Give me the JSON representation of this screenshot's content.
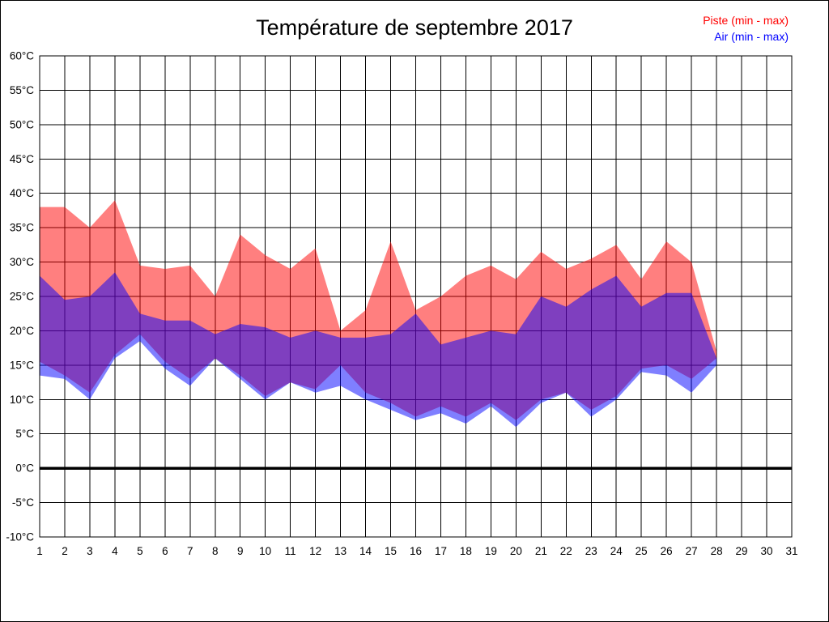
{
  "page": {
    "background_color": "#ffffff",
    "border_color": "#000000"
  },
  "chart_data": {
    "type": "area",
    "title": "Température de septembre 2017",
    "xlabel": "",
    "ylabel": "",
    "grid": true,
    "legend_position": "top-right",
    "legend": [
      {
        "label": "Piste (min - max)",
        "color": "#ff0000"
      },
      {
        "label": "Air (min - max)",
        "color": "#0000ff"
      }
    ],
    "x_days": [
      1,
      2,
      3,
      4,
      5,
      6,
      7,
      8,
      9,
      10,
      11,
      12,
      13,
      14,
      15,
      16,
      17,
      18,
      19,
      20,
      21,
      22,
      23,
      24,
      25,
      26,
      27,
      28
    ],
    "series": [
      {
        "name": "Piste max",
        "values": [
          38,
          38,
          35,
          39,
          29.5,
          29,
          29.5,
          25,
          34,
          31,
          29,
          32,
          20,
          23,
          33,
          23,
          25,
          28,
          29.5,
          27.5,
          31.5,
          29,
          30.5,
          32.5,
          27.5,
          33,
          30,
          17
        ]
      },
      {
        "name": "Piste min",
        "values": [
          15.5,
          13.5,
          11,
          16.5,
          19.5,
          15.5,
          13,
          16,
          13.5,
          10.5,
          12.5,
          11.5,
          15,
          11,
          9.5,
          7.5,
          9,
          7.5,
          9.5,
          7,
          10,
          11,
          8.5,
          10.5,
          14.5,
          15,
          13,
          16
        ]
      },
      {
        "name": "Air max",
        "values": [
          28,
          24.5,
          25,
          28.5,
          22.5,
          21.5,
          21.5,
          19.5,
          21,
          20.5,
          19,
          20,
          19,
          19,
          19.5,
          22.5,
          18,
          19,
          20,
          19.5,
          25,
          23.5,
          26,
          28,
          23.5,
          25.5,
          25.5,
          16
        ]
      },
      {
        "name": "Air min",
        "values": [
          13.5,
          13,
          10,
          16,
          18.5,
          14.5,
          12,
          16,
          13,
          10,
          12.5,
          11,
          12,
          10,
          8.5,
          7,
          8,
          6.5,
          9,
          6,
          9.5,
          11,
          7.5,
          10,
          14,
          13.5,
          11,
          15
        ]
      }
    ],
    "bands": [
      {
        "name": "piste",
        "color": "#ff0000",
        "opacity": 0.5,
        "max_series": 0,
        "min_series": 1
      },
      {
        "name": "air",
        "color": "#0000ff",
        "opacity": 0.5,
        "max_series": 2,
        "min_series": 3
      }
    ],
    "x_axis": {
      "range": [
        1,
        31
      ],
      "ticks": [
        1,
        2,
        3,
        4,
        5,
        6,
        7,
        8,
        9,
        10,
        11,
        12,
        13,
        14,
        15,
        16,
        17,
        18,
        19,
        20,
        21,
        22,
        23,
        24,
        25,
        26,
        27,
        28,
        29,
        30,
        31
      ]
    },
    "y_axis": {
      "range": [
        -10,
        60
      ],
      "ticks": [
        {
          "label": "60°C",
          "value": 60
        },
        {
          "label": "55°C",
          "value": 55
        },
        {
          "label": "50°C",
          "value": 50
        },
        {
          "label": "45°C",
          "value": 45
        },
        {
          "label": "40°C",
          "value": 40
        },
        {
          "label": "35°C",
          "value": 35
        },
        {
          "label": "30°C",
          "value": 30
        },
        {
          "label": "25°C",
          "value": 25
        },
        {
          "label": "20°C",
          "value": 20
        },
        {
          "label": "15°C",
          "value": 15
        },
        {
          "label": "10°C",
          "value": 10
        },
        {
          "label": "5°C",
          "value": 5
        },
        {
          "label": "0°C",
          "value": 0
        },
        {
          "label": "-5°C",
          "value": -5
        },
        {
          "label": "-10°C",
          "value": -10
        }
      ]
    },
    "zero_line": {
      "value": 0,
      "color": "#000000",
      "width": 3.5
    },
    "colors": {
      "grid": "#000000",
      "axis_text": "#000000",
      "piste_fill_on_white": "#ff8080",
      "air_fill_on_white": "#8080ff",
      "overlap_fill": "#8040bf"
    }
  }
}
